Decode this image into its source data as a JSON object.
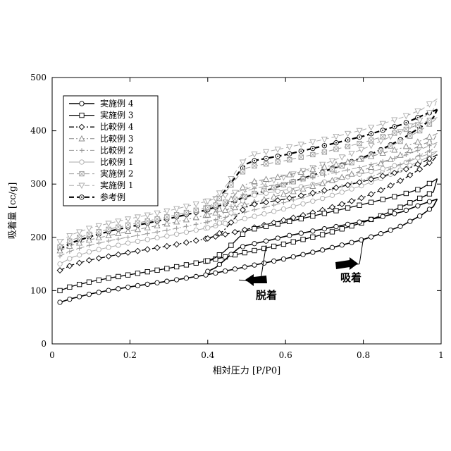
{
  "chart_data": {
    "type": "line",
    "title": "",
    "xlabel": "相対圧力 [P/P0]",
    "ylabel": "吸着量 [cc/g]",
    "xlim": [
      0,
      1
    ],
    "ylim": [
      0,
      500
    ],
    "xticks": [
      0,
      0.2,
      0.4,
      0.6,
      0.8,
      1
    ],
    "xtick_labels": [
      "0",
      "0.2",
      "0.4",
      "0.6",
      "0.8",
      "1"
    ],
    "yticks": [
      0,
      100,
      200,
      300,
      400,
      500
    ],
    "ytick_labels": [
      "0",
      "100",
      "200",
      "300",
      "400",
      "500"
    ],
    "grid": false,
    "legend_position": "top-left",
    "series": [
      {
        "name": "実施例 4",
        "line": "solid",
        "marker": "circle",
        "color": "#000000",
        "width": 1.6,
        "adsorption": [
          [
            0.02,
            78
          ],
          [
            0.05,
            85
          ],
          [
            0.1,
            94
          ],
          [
            0.15,
            101
          ],
          [
            0.2,
            107
          ],
          [
            0.3,
            118
          ],
          [
            0.4,
            130
          ],
          [
            0.5,
            145
          ],
          [
            0.6,
            160
          ],
          [
            0.7,
            177
          ],
          [
            0.8,
            196
          ],
          [
            0.85,
            208
          ],
          [
            0.9,
            222
          ],
          [
            0.95,
            242
          ],
          [
            0.98,
            258
          ],
          [
            0.99,
            272
          ]
        ],
        "desorption": [
          [
            0.99,
            272
          ],
          [
            0.95,
            262
          ],
          [
            0.9,
            248
          ],
          [
            0.8,
            230
          ],
          [
            0.7,
            216
          ],
          [
            0.6,
            202
          ],
          [
            0.55,
            193
          ],
          [
            0.5,
            185
          ],
          [
            0.48,
            180
          ],
          [
            0.46,
            168
          ],
          [
            0.44,
            155
          ],
          [
            0.42,
            143
          ],
          [
            0.4,
            136
          ]
        ]
      },
      {
        "name": "実施例 3",
        "line": "solid",
        "marker": "square",
        "color": "#000000",
        "width": 1.3,
        "adsorption": [
          [
            0.02,
            100
          ],
          [
            0.05,
            108
          ],
          [
            0.1,
            117
          ],
          [
            0.15,
            124
          ],
          [
            0.2,
            130
          ],
          [
            0.3,
            142
          ],
          [
            0.4,
            156
          ],
          [
            0.5,
            172
          ],
          [
            0.6,
            188
          ],
          [
            0.7,
            206
          ],
          [
            0.8,
            228
          ],
          [
            0.85,
            242
          ],
          [
            0.9,
            258
          ],
          [
            0.95,
            275
          ],
          [
            0.98,
            285
          ],
          [
            0.99,
            310
          ]
        ],
        "desorption": [
          [
            0.99,
            310
          ],
          [
            0.95,
            292
          ],
          [
            0.9,
            280
          ],
          [
            0.8,
            262
          ],
          [
            0.7,
            245
          ],
          [
            0.6,
            228
          ],
          [
            0.52,
            216
          ],
          [
            0.5,
            212
          ],
          [
            0.48,
            200
          ],
          [
            0.46,
            185
          ],
          [
            0.44,
            172
          ],
          [
            0.42,
            162
          ],
          [
            0.4,
            156
          ]
        ]
      },
      {
        "name": "比較例 4",
        "line": "dashdot",
        "marker": "diamond",
        "color": "#000000",
        "width": 1.3,
        "adsorption": [
          [
            0.02,
            138
          ],
          [
            0.05,
            148
          ],
          [
            0.1,
            158
          ],
          [
            0.15,
            165
          ],
          [
            0.2,
            172
          ],
          [
            0.3,
            184
          ],
          [
            0.4,
            198
          ],
          [
            0.5,
            215
          ],
          [
            0.6,
            233
          ],
          [
            0.7,
            252
          ],
          [
            0.8,
            275
          ],
          [
            0.85,
            290
          ],
          [
            0.9,
            308
          ],
          [
            0.95,
            330
          ],
          [
            0.98,
            345
          ],
          [
            0.99,
            355
          ]
        ],
        "desorption": [
          [
            0.99,
            355
          ],
          [
            0.95,
            340
          ],
          [
            0.9,
            325
          ],
          [
            0.8,
            305
          ],
          [
            0.7,
            288
          ],
          [
            0.6,
            272
          ],
          [
            0.52,
            262
          ],
          [
            0.5,
            258
          ],
          [
            0.48,
            245
          ],
          [
            0.46,
            228
          ],
          [
            0.44,
            212
          ],
          [
            0.42,
            203
          ],
          [
            0.4,
            198
          ]
        ]
      },
      {
        "name": "比較例 3",
        "line": "dashdot",
        "marker": "triangle",
        "color": "#888888",
        "width": 1.0,
        "adsorption": [
          [
            0.02,
            175
          ],
          [
            0.05,
            185
          ],
          [
            0.1,
            196
          ],
          [
            0.15,
            204
          ],
          [
            0.2,
            212
          ],
          [
            0.3,
            226
          ],
          [
            0.4,
            242
          ],
          [
            0.5,
            262
          ],
          [
            0.6,
            282
          ],
          [
            0.7,
            302
          ],
          [
            0.8,
            326
          ],
          [
            0.85,
            340
          ],
          [
            0.9,
            356
          ],
          [
            0.95,
            374
          ],
          [
            0.98,
            382
          ],
          [
            0.99,
            395
          ]
        ],
        "desorption": [
          [
            0.99,
            395
          ],
          [
            0.95,
            382
          ],
          [
            0.9,
            368
          ],
          [
            0.8,
            348
          ],
          [
            0.7,
            332
          ],
          [
            0.6,
            316
          ],
          [
            0.52,
            305
          ],
          [
            0.5,
            300
          ],
          [
            0.48,
            288
          ],
          [
            0.46,
            272
          ],
          [
            0.44,
            258
          ],
          [
            0.42,
            248
          ],
          [
            0.4,
            242
          ]
        ]
      },
      {
        "name": "比較例 2",
        "line": "dashdot",
        "marker": "cross",
        "color": "#999999",
        "width": 1.0,
        "adsorption": [
          [
            0.02,
            165
          ],
          [
            0.05,
            175
          ],
          [
            0.1,
            186
          ],
          [
            0.15,
            194
          ],
          [
            0.2,
            201
          ],
          [
            0.3,
            214
          ],
          [
            0.4,
            229
          ],
          [
            0.5,
            248
          ],
          [
            0.6,
            266
          ],
          [
            0.7,
            286
          ],
          [
            0.8,
            308
          ],
          [
            0.85,
            322
          ],
          [
            0.9,
            338
          ],
          [
            0.95,
            356
          ],
          [
            0.98,
            366
          ],
          [
            0.99,
            378
          ]
        ],
        "desorption": [
          [
            0.99,
            378
          ],
          [
            0.95,
            366
          ],
          [
            0.9,
            352
          ],
          [
            0.8,
            333
          ],
          [
            0.7,
            317
          ],
          [
            0.6,
            302
          ],
          [
            0.52,
            292
          ],
          [
            0.5,
            287
          ],
          [
            0.48,
            274
          ],
          [
            0.46,
            258
          ],
          [
            0.44,
            244
          ],
          [
            0.42,
            234
          ],
          [
            0.4,
            229
          ]
        ]
      },
      {
        "name": "比較例 1",
        "line": "solid",
        "marker": "circle",
        "color": "#aaaaaa",
        "width": 1.0,
        "adsorption": [
          [
            0.02,
            150
          ],
          [
            0.05,
            162
          ],
          [
            0.1,
            174
          ],
          [
            0.15,
            182
          ],
          [
            0.2,
            190
          ],
          [
            0.3,
            203
          ],
          [
            0.4,
            218
          ],
          [
            0.5,
            236
          ],
          [
            0.6,
            254
          ],
          [
            0.7,
            274
          ],
          [
            0.8,
            298
          ],
          [
            0.85,
            312
          ],
          [
            0.9,
            328
          ],
          [
            0.95,
            345
          ],
          [
            0.98,
            356
          ],
          [
            0.99,
            362
          ]
        ],
        "desorption": [
          [
            0.99,
            362
          ],
          [
            0.95,
            352
          ],
          [
            0.9,
            338
          ],
          [
            0.8,
            320
          ],
          [
            0.7,
            304
          ],
          [
            0.6,
            289
          ],
          [
            0.52,
            279
          ],
          [
            0.5,
            275
          ],
          [
            0.48,
            262
          ],
          [
            0.46,
            246
          ],
          [
            0.44,
            232
          ],
          [
            0.42,
            222
          ],
          [
            0.4,
            218
          ]
        ]
      },
      {
        "name": "実施例 2",
        "line": "dashed",
        "marker": "square-x",
        "color": "#999999",
        "width": 1.0,
        "adsorption": [
          [
            0.02,
            182
          ],
          [
            0.05,
            195
          ],
          [
            0.1,
            207
          ],
          [
            0.15,
            216
          ],
          [
            0.2,
            224
          ],
          [
            0.3,
            239
          ],
          [
            0.4,
            256
          ],
          [
            0.5,
            278
          ],
          [
            0.6,
            300
          ],
          [
            0.7,
            322
          ],
          [
            0.8,
            348
          ],
          [
            0.85,
            364
          ],
          [
            0.9,
            382
          ],
          [
            0.95,
            402
          ],
          [
            0.98,
            418
          ],
          [
            0.99,
            425
          ]
        ],
        "desorption": [
          [
            0.99,
            425
          ],
          [
            0.95,
            414
          ],
          [
            0.9,
            400
          ],
          [
            0.8,
            378
          ],
          [
            0.7,
            360
          ],
          [
            0.6,
            344
          ],
          [
            0.52,
            334
          ],
          [
            0.5,
            330
          ],
          [
            0.48,
            316
          ],
          [
            0.46,
            298
          ],
          [
            0.44,
            280
          ],
          [
            0.42,
            266
          ],
          [
            0.4,
            256
          ]
        ]
      },
      {
        "name": "実施例 1",
        "line": "dashed",
        "marker": "inv-triangle",
        "color": "#aaaaaa",
        "width": 1.0,
        "adsorption": [
          [
            0.02,
            192
          ],
          [
            0.05,
            205
          ],
          [
            0.1,
            218
          ],
          [
            0.15,
            227
          ],
          [
            0.2,
            235
          ],
          [
            0.3,
            250
          ],
          [
            0.4,
            268
          ],
          [
            0.5,
            291
          ],
          [
            0.6,
            314
          ],
          [
            0.7,
            338
          ],
          [
            0.8,
            366
          ],
          [
            0.85,
            382
          ],
          [
            0.9,
            400
          ],
          [
            0.95,
            422
          ],
          [
            0.98,
            440
          ],
          [
            0.99,
            460
          ]
        ],
        "desorption": [
          [
            0.99,
            460
          ],
          [
            0.95,
            440
          ],
          [
            0.9,
            425
          ],
          [
            0.8,
            402
          ],
          [
            0.7,
            384
          ],
          [
            0.6,
            368
          ],
          [
            0.52,
            356
          ],
          [
            0.5,
            350
          ],
          [
            0.48,
            332
          ],
          [
            0.46,
            310
          ],
          [
            0.44,
            290
          ],
          [
            0.42,
            276
          ],
          [
            0.4,
            268
          ]
        ]
      },
      {
        "name": "参考例",
        "line": "dashed",
        "marker": "circle-dot",
        "color": "#000000",
        "width": 2.2,
        "adsorption": [
          [
            0.02,
            178
          ],
          [
            0.05,
            190
          ],
          [
            0.1,
            202
          ],
          [
            0.15,
            212
          ],
          [
            0.2,
            220
          ],
          [
            0.3,
            235
          ],
          [
            0.4,
            252
          ],
          [
            0.5,
            276
          ],
          [
            0.6,
            300
          ],
          [
            0.7,
            324
          ],
          [
            0.8,
            350
          ],
          [
            0.85,
            366
          ],
          [
            0.9,
            385
          ],
          [
            0.95,
            408
          ],
          [
            0.98,
            425
          ],
          [
            0.99,
            440
          ]
        ],
        "desorption": [
          [
            0.99,
            440
          ],
          [
            0.95,
            428
          ],
          [
            0.9,
            412
          ],
          [
            0.8,
            390
          ],
          [
            0.7,
            372
          ],
          [
            0.6,
            355
          ],
          [
            0.52,
            344
          ],
          [
            0.5,
            338
          ],
          [
            0.48,
            322
          ],
          [
            0.46,
            302
          ],
          [
            0.44,
            284
          ],
          [
            0.42,
            262
          ],
          [
            0.4,
            252
          ]
        ]
      }
    ],
    "annotations": [
      {
        "text": "脱着",
        "arrow": "left",
        "x": 0.5,
        "y": 120
      },
      {
        "text": "吸着",
        "arrow": "right",
        "x": 0.76,
        "y": 135
      }
    ]
  }
}
